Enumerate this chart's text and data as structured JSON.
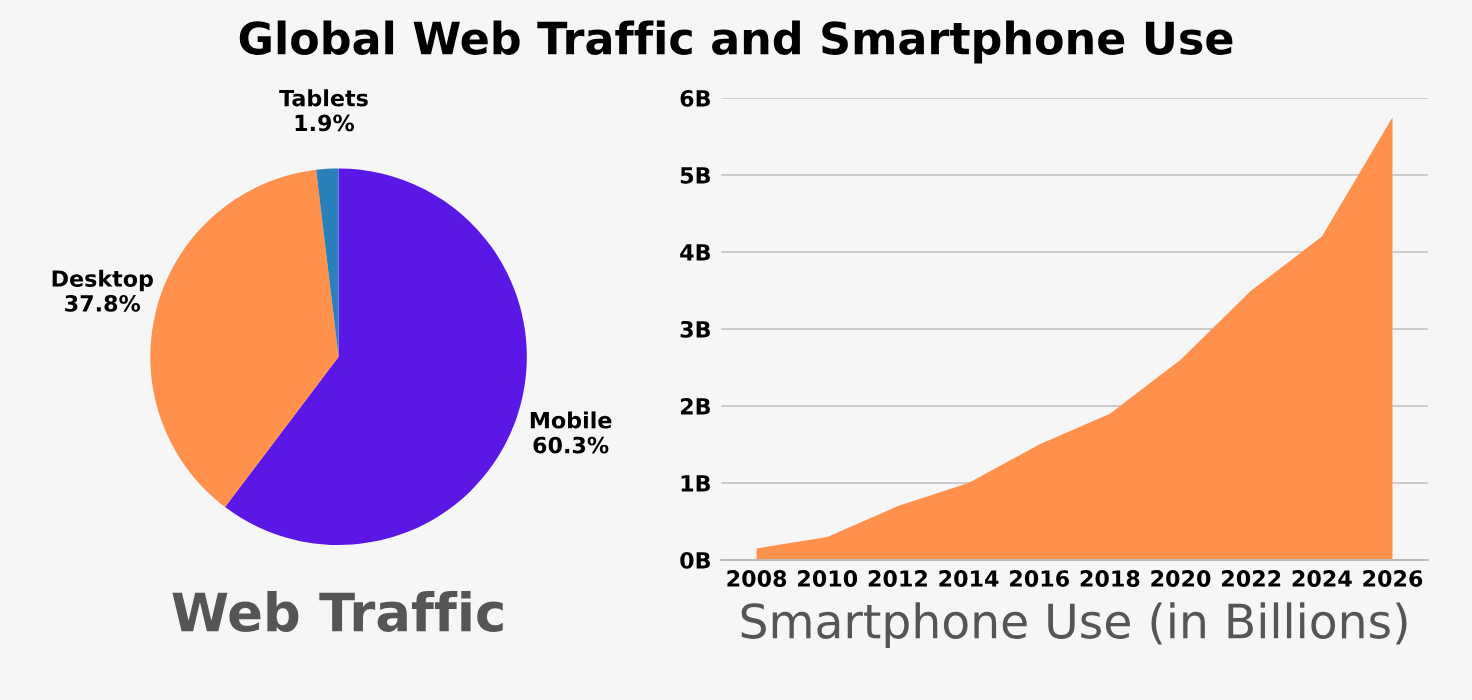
{
  "chart_data": [
    {
      "type": "pie",
      "title": "Global Web Traffic and Smartphone Use",
      "xlabel": "Web Traffic",
      "categories": [
        "Mobile",
        "Desktop",
        "Tablets"
      ],
      "values": [
        60.3,
        37.8,
        1.9
      ],
      "colors": [
        "#5b17e6",
        "#ff914d",
        "#2a80b9"
      ],
      "value_labels": [
        "60.3%",
        "37.8%",
        "1.9%"
      ]
    },
    {
      "type": "area",
      "xlabel": "Smartphone Use (in Billions)",
      "x": [
        2008,
        2010,
        2012,
        2014,
        2016,
        2018,
        2020,
        2022,
        2024,
        2026
      ],
      "series": [
        {
          "color": "#ff914d",
          "values": [
            0.15,
            0.3,
            0.7,
            1.0,
            1.5,
            1.9,
            2.6,
            3.5,
            4.2,
            5.75
          ]
        }
      ],
      "xlim": [
        2007,
        2027
      ],
      "xticks": [
        2008,
        2010,
        2012,
        2014,
        2016,
        2018,
        2020,
        2022,
        2024,
        2026
      ],
      "ylim": [
        0,
        6
      ],
      "yticks": [
        {
          "value": 0,
          "label": "0B"
        },
        {
          "value": 1,
          "label": "1B"
        },
        {
          "value": 2,
          "label": "2B"
        },
        {
          "value": 3,
          "label": "3B"
        },
        {
          "value": 4,
          "label": "4B"
        },
        {
          "value": 5,
          "label": "5B"
        },
        {
          "value": 6,
          "label": "6B"
        }
      ],
      "grid": "y"
    }
  ]
}
